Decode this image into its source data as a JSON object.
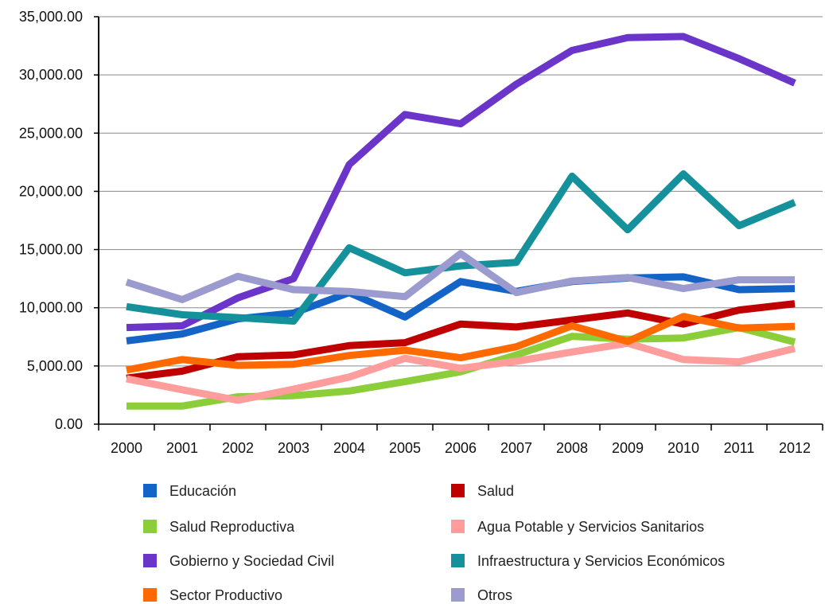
{
  "chart_data": {
    "type": "line",
    "title": "",
    "xlabel": "",
    "ylabel": "",
    "categories": [
      "2000",
      "2001",
      "2002",
      "2003",
      "2004",
      "2005",
      "2006",
      "2007",
      "2008",
      "2009",
      "2010",
      "2011",
      "2012"
    ],
    "ylim": [
      0,
      35000
    ],
    "y_ticks": [
      0,
      5000,
      10000,
      15000,
      20000,
      25000,
      30000,
      35000
    ],
    "y_tick_labels": [
      "0.00",
      "5,000.00",
      "10,000.00",
      "15,000.00",
      "20,000.00",
      "25,000.00",
      "30,000.00",
      "35,000.00"
    ],
    "grid": "horizontal",
    "legend_position": "bottom",
    "series": [
      {
        "name": "Educación",
        "color": "#1464c8",
        "values": [
          7150,
          7750,
          9050,
          9550,
          11300,
          9200,
          12250,
          11400,
          12250,
          12550,
          12650,
          11550,
          11650
        ]
      },
      {
        "name": "Salud",
        "color": "#c00000",
        "values": [
          3950,
          4550,
          5800,
          5950,
          6750,
          7000,
          8600,
          8350,
          8950,
          9550,
          8600,
          9800,
          10350
        ]
      },
      {
        "name": "Salud Reproductiva",
        "color": "#8ccd3a",
        "values": [
          1550,
          1550,
          2350,
          2450,
          2850,
          3650,
          4500,
          5950,
          7550,
          7300,
          7400,
          8300,
          7050
        ]
      },
      {
        "name": "Agua Potable y Servicios Sanitarios",
        "color": "#ff9c9c",
        "values": [
          3900,
          2950,
          2050,
          3000,
          4050,
          5650,
          4800,
          5400,
          6200,
          6950,
          5550,
          5350,
          6500
        ]
      },
      {
        "name": "Gobierno y Sociedad Civil",
        "color": "#6a35c8",
        "values": [
          8300,
          8450,
          10850,
          12500,
          22300,
          26600,
          25800,
          29200,
          32100,
          33200,
          33300,
          31400,
          29300
        ]
      },
      {
        "name": "Infraestructura y Servicios Económicos",
        "color": "#14919b",
        "values": [
          10100,
          9400,
          9150,
          8850,
          15150,
          13000,
          13600,
          13900,
          21300,
          16700,
          21500,
          17050,
          19050
        ]
      },
      {
        "name": "Sector Productivo",
        "color": "#ff6a00",
        "values": [
          4650,
          5550,
          5050,
          5150,
          5900,
          6350,
          5700,
          6650,
          8450,
          7100,
          9250,
          8250,
          8400
        ]
      },
      {
        "name": "Otros",
        "color": "#9b9bd0",
        "values": [
          12200,
          10700,
          12700,
          11550,
          11400,
          10950,
          14650,
          11300,
          12300,
          12600,
          11650,
          12400,
          12400
        ]
      }
    ]
  }
}
